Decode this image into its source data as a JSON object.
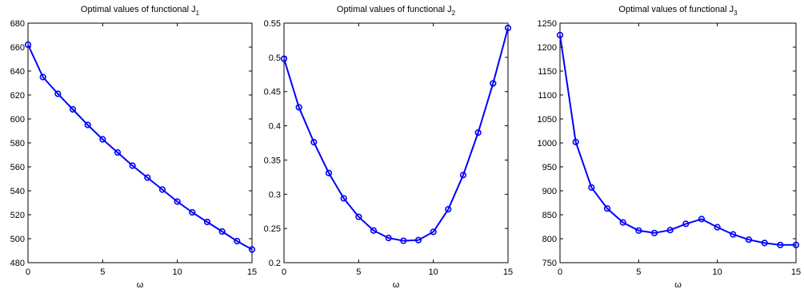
{
  "chart_data": [
    {
      "type": "line",
      "title_main": "Optimal values of functional J",
      "title_sub": "1",
      "xlabel": "ω",
      "ylabel": "",
      "xlim": [
        0,
        15
      ],
      "ylim": [
        480,
        680
      ],
      "xticks": [
        0,
        5,
        10,
        15
      ],
      "yticks": [
        480,
        500,
        520,
        540,
        560,
        580,
        600,
        620,
        640,
        660,
        680
      ],
      "grid": false,
      "series": [
        {
          "x": [
            0,
            1,
            2,
            3,
            4,
            5,
            6,
            7,
            8,
            9,
            10,
            11,
            12,
            13,
            14,
            15
          ],
          "y": [
            662,
            635,
            621,
            608,
            595,
            583,
            572,
            561,
            551,
            541,
            531,
            522,
            514,
            506,
            498,
            491
          ]
        }
      ]
    },
    {
      "type": "line",
      "title_main": "Optimal values of functional J",
      "title_sub": "2",
      "xlabel": "ω",
      "ylabel": "",
      "xlim": [
        0,
        15
      ],
      "ylim": [
        0.2,
        0.55
      ],
      "xticks": [
        0,
        5,
        10,
        15
      ],
      "yticks": [
        0.2,
        0.25,
        0.3,
        0.35,
        0.4,
        0.45,
        0.5,
        0.55
      ],
      "grid": false,
      "series": [
        {
          "x": [
            0,
            1,
            2,
            3,
            4,
            5,
            6,
            7,
            8,
            9,
            10,
            11,
            12,
            13,
            14,
            15
          ],
          "y": [
            0.498,
            0.427,
            0.376,
            0.331,
            0.294,
            0.267,
            0.247,
            0.236,
            0.232,
            0.233,
            0.245,
            0.278,
            0.328,
            0.39,
            0.462,
            0.543
          ]
        }
      ]
    },
    {
      "type": "line",
      "title_main": "Optimal values of functional J",
      "title_sub": "3",
      "xlabel": "ω",
      "ylabel": "",
      "xlim": [
        0,
        15
      ],
      "ylim": [
        750,
        1250
      ],
      "xticks": [
        0,
        5,
        10,
        15
      ],
      "yticks": [
        750,
        800,
        850,
        900,
        950,
        1000,
        1050,
        1100,
        1150,
        1200,
        1250
      ],
      "grid": false,
      "series": [
        {
          "x": [
            0,
            1,
            2,
            3,
            4,
            5,
            6,
            7,
            8,
            9,
            10,
            11,
            12,
            13,
            14,
            15
          ],
          "y": [
            1225,
            1002,
            907,
            863,
            834,
            817,
            812,
            818,
            831,
            841,
            824,
            809,
            798,
            791,
            787,
            787
          ]
        }
      ]
    }
  ],
  "style": {
    "line_color": "#0000ff",
    "axis_color": "#000000",
    "background": "#ffffff"
  }
}
